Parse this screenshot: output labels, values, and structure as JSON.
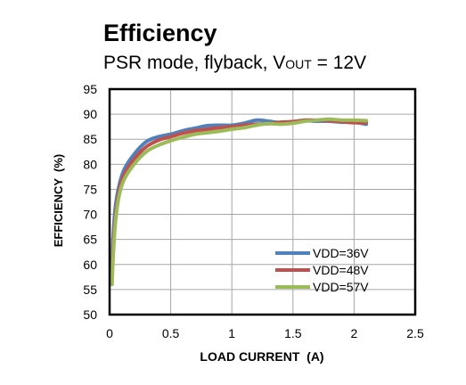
{
  "chart_data": {
    "type": "line",
    "title": "Efficiency",
    "subtitle": {
      "before": "PSR mode, flyback, V",
      "subscript": "OUT",
      "after": " = 12V"
    },
    "xlabel": "LOAD CURRENT  (A)",
    "ylabel": "EFFICIENCY  (%)",
    "xlim": [
      0,
      2.5
    ],
    "ylim": [
      50,
      95
    ],
    "xticks": [
      0,
      0.5,
      1,
      1.5,
      2,
      2.5
    ],
    "xtick_labels": [
      "0",
      "0.5",
      "1",
      "1.5",
      "2",
      "2.5"
    ],
    "yticks": [
      50,
      55,
      60,
      65,
      70,
      75,
      80,
      85,
      90,
      95
    ],
    "ytick_labels": [
      "50",
      "55",
      "60",
      "65",
      "70",
      "75",
      "80",
      "85",
      "90",
      "95"
    ],
    "grid": true,
    "legend_position": "bottom-right",
    "series": [
      {
        "name": "VDD=36V",
        "color": "#4f81bd",
        "x": [
          0.02,
          0.03,
          0.05,
          0.08,
          0.12,
          0.2,
          0.3,
          0.4,
          0.5,
          0.6,
          0.7,
          0.8,
          0.9,
          1.0,
          1.1,
          1.2,
          1.3,
          1.4,
          1.5,
          1.6,
          1.7,
          1.8,
          1.9,
          2.0,
          2.1
        ],
        "y": [
          60,
          66,
          72,
          76,
          79,
          82,
          84.5,
          85.5,
          86,
          86.7,
          87.2,
          87.7,
          87.8,
          87.8,
          88.2,
          88.8,
          88.6,
          88.3,
          88.5,
          88.7,
          88.6,
          88.6,
          88.4,
          88.4,
          88
        ]
      },
      {
        "name": "VDD=48V",
        "color": "#c0504d",
        "x": [
          0.02,
          0.03,
          0.05,
          0.08,
          0.12,
          0.2,
          0.3,
          0.4,
          0.5,
          0.6,
          0.7,
          0.8,
          0.9,
          1.0,
          1.1,
          1.2,
          1.3,
          1.4,
          1.5,
          1.6,
          1.7,
          1.8,
          1.9,
          2.0,
          2.1
        ],
        "y": [
          58,
          64,
          70,
          75,
          78,
          81,
          83.5,
          84.8,
          85.5,
          86.2,
          86.7,
          87,
          87.3,
          87.5,
          87.8,
          88,
          88.1,
          88.4,
          88.5,
          88.8,
          88.8,
          88.7,
          88.5,
          88.3,
          88.3
        ]
      },
      {
        "name": "VDD=57V",
        "color": "#9bbb59",
        "x": [
          0.02,
          0.03,
          0.05,
          0.08,
          0.12,
          0.2,
          0.3,
          0.4,
          0.5,
          0.6,
          0.7,
          0.8,
          0.9,
          1.0,
          1.1,
          1.2,
          1.3,
          1.4,
          1.5,
          1.6,
          1.7,
          1.8,
          1.9,
          2.0,
          2.1
        ],
        "y": [
          56,
          62,
          69,
          74,
          77,
          80,
          82.5,
          83.8,
          84.7,
          85.4,
          86,
          86.3,
          86.6,
          87,
          87.3,
          87.8,
          88.1,
          88,
          88.2,
          88.6,
          88.8,
          89,
          88.8,
          88.8,
          88.7
        ]
      }
    ]
  }
}
